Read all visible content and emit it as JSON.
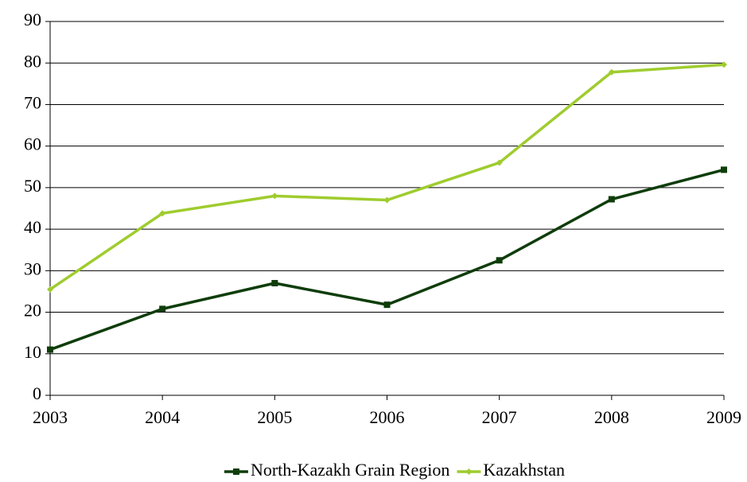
{
  "chart_data": {
    "type": "line",
    "categories": [
      "2003",
      "2004",
      "2005",
      "2006",
      "2007",
      "2008",
      "2009"
    ],
    "series": [
      {
        "name": "North-Kazakh Grain Region",
        "color": "#0e3d0a",
        "marker": "square",
        "values": [
          11,
          20.8,
          27,
          21.8,
          32.5,
          47.2,
          54.3
        ]
      },
      {
        "name": "Kazakhstan",
        "color": "#9fcc2e",
        "marker": "diamond",
        "values": [
          25.5,
          43.8,
          48,
          47,
          56,
          77.8,
          79.6
        ]
      }
    ],
    "ylim": [
      0,
      90
    ],
    "yticks": [
      0,
      10,
      20,
      30,
      40,
      50,
      60,
      70,
      80,
      90
    ],
    "grid": true,
    "legend": "bottom"
  }
}
